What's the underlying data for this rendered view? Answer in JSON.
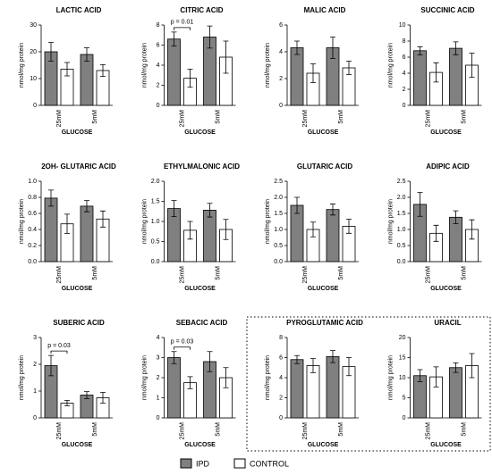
{
  "chart_data": [
    {
      "type": "bar",
      "title": "LACTIC ACID",
      "ylabel": "nmol/mg protein",
      "xlabel": "GLUCOSE",
      "categories": [
        "25mM",
        "5mM"
      ],
      "ylim": [
        0,
        30
      ],
      "yticks": [
        0,
        10,
        20,
        30
      ],
      "series": [
        {
          "name": "IPD",
          "color": "#808080",
          "values": [
            20,
            19
          ],
          "error": [
            3.5,
            2.5
          ]
        },
        {
          "name": "CONTROL",
          "color": "#ffffff",
          "values": [
            13.5,
            13
          ],
          "error": [
            2.5,
            2.2
          ]
        }
      ]
    },
    {
      "type": "bar",
      "title": "CITRIC ACID",
      "ylabel": "nmol/mg protein",
      "xlabel": "GLUCOSE",
      "categories": [
        "25mM",
        "5mM"
      ],
      "ylim": [
        0,
        8
      ],
      "yticks": [
        0,
        2,
        4,
        6,
        8
      ],
      "annotation": "p = 0.01",
      "series": [
        {
          "color": "#808080",
          "values": [
            6.6,
            6.8
          ],
          "error": [
            0.7,
            1.1
          ]
        },
        {
          "color": "#ffffff",
          "values": [
            2.7,
            4.8
          ],
          "error": [
            0.9,
            1.6
          ]
        }
      ]
    },
    {
      "type": "bar",
      "title": "MALIC ACID",
      "ylabel": "nmol/mg protein",
      "xlabel": "GLUCOSE",
      "categories": [
        "25mM",
        "5mM"
      ],
      "ylim": [
        0,
        6
      ],
      "yticks": [
        0,
        2,
        4,
        6
      ],
      "series": [
        {
          "color": "#808080",
          "values": [
            4.3,
            4.3
          ],
          "error": [
            0.5,
            0.8
          ]
        },
        {
          "color": "#ffffff",
          "values": [
            2.4,
            2.8
          ],
          "error": [
            0.7,
            0.5
          ]
        }
      ]
    },
    {
      "type": "bar",
      "title": "SUCCINIC ACID",
      "ylabel": "nmol/mg protein",
      "xlabel": "GLUCOSE",
      "categories": [
        "25mM",
        "5mM"
      ],
      "ylim": [
        0,
        10
      ],
      "yticks": [
        0,
        2,
        4,
        6,
        8,
        10
      ],
      "series": [
        {
          "color": "#808080",
          "values": [
            6.8,
            7.1
          ],
          "error": [
            0.5,
            0.8
          ]
        },
        {
          "color": "#ffffff",
          "values": [
            4.1,
            5.0
          ],
          "error": [
            1.2,
            1.5
          ]
        }
      ]
    },
    {
      "type": "bar",
      "title": "2OH- GLUTARIC ACID",
      "ylabel": "nmol/mg protein",
      "xlabel": "GLUCOSE",
      "categories": [
        "25mM",
        "5mM"
      ],
      "ylim": [
        0,
        1
      ],
      "yticks": [
        {
          "value": 0,
          "label": "0.0"
        },
        0.2,
        0.4,
        0.6,
        0.8,
        {
          "value": 1,
          "label": "1.0"
        }
      ],
      "series": [
        {
          "color": "#808080",
          "values": [
            0.79,
            0.69
          ],
          "error": [
            0.1,
            0.07
          ]
        },
        {
          "color": "#ffffff",
          "values": [
            0.47,
            0.53
          ],
          "error": [
            0.12,
            0.1
          ]
        }
      ]
    },
    {
      "type": "bar",
      "title": "ETHYLMALONIC ACID",
      "ylabel": "nmol/mg protein",
      "xlabel": "GLUCOSE",
      "categories": [
        "25mM",
        "5mM"
      ],
      "ylim": [
        0,
        2
      ],
      "yticks": [
        {
          "value": 0,
          "label": "0.0"
        },
        0.5,
        {
          "value": 1,
          "label": "1.0"
        },
        1.5,
        {
          "value": 2,
          "label": "2.0"
        }
      ],
      "series": [
        {
          "color": "#808080",
          "values": [
            1.32,
            1.28
          ],
          "error": [
            0.2,
            0.17
          ]
        },
        {
          "color": "#ffffff",
          "values": [
            0.78,
            0.8
          ],
          "error": [
            0.22,
            0.25
          ]
        }
      ]
    },
    {
      "type": "bar",
      "title": "GLUTARIC ACID",
      "ylabel": "nmol/mg protein",
      "xlabel": "GLUCOSE",
      "categories": [
        "25mM",
        "5mM"
      ],
      "ylim": [
        0,
        2.5
      ],
      "yticks": [
        {
          "value": 0,
          "label": "0.0"
        },
        0.5,
        {
          "value": 1,
          "label": "1.0"
        },
        1.5,
        {
          "value": 2,
          "label": "2.0"
        },
        2.5
      ],
      "series": [
        {
          "color": "#808080",
          "values": [
            1.75,
            1.62
          ],
          "error": [
            0.25,
            0.17
          ]
        },
        {
          "color": "#ffffff",
          "values": [
            1.0,
            1.1
          ],
          "error": [
            0.23,
            0.22
          ]
        }
      ]
    },
    {
      "type": "bar",
      "title": "ADIPIC ACID",
      "ylabel": "nmol/mg protein",
      "xlabel": "GLUCOSE",
      "categories": [
        "25mM",
        "5mM"
      ],
      "ylim": [
        0,
        2.5
      ],
      "yticks": [
        {
          "value": 0,
          "label": "0.0"
        },
        0.5,
        {
          "value": 1,
          "label": "1.0"
        },
        1.5,
        {
          "value": 2,
          "label": "2.0"
        },
        2.5
      ],
      "series": [
        {
          "color": "#808080",
          "values": [
            1.78,
            1.38
          ],
          "error": [
            0.37,
            0.2
          ]
        },
        {
          "color": "#ffffff",
          "values": [
            0.88,
            1.0
          ],
          "error": [
            0.25,
            0.3
          ]
        }
      ]
    },
    {
      "type": "bar",
      "title": "SUBERIC ACID",
      "ylabel": "nmol/mg protein",
      "xlabel": "GLUCOSE",
      "categories": [
        "25mM",
        "5mM"
      ],
      "ylim": [
        0,
        3
      ],
      "yticks": [
        0,
        1,
        2,
        3
      ],
      "annotation": "p = 0.03",
      "series": [
        {
          "color": "#808080",
          "values": [
            1.95,
            0.85
          ],
          "error": [
            0.38,
            0.13
          ]
        },
        {
          "color": "#ffffff",
          "values": [
            0.55,
            0.75
          ],
          "error": [
            0.1,
            0.2
          ]
        }
      ]
    },
    {
      "type": "bar",
      "title": "SEBACIC ACID",
      "ylabel": "nmol/mg protein",
      "xlabel": "GLUCOSE",
      "categories": [
        "25mM",
        "5mM"
      ],
      "ylim": [
        0,
        4
      ],
      "yticks": [
        0,
        1,
        2,
        3,
        4
      ],
      "annotation": "p = 0.03",
      "series": [
        {
          "color": "#808080",
          "values": [
            3.0,
            2.8
          ],
          "error": [
            0.3,
            0.5
          ]
        },
        {
          "color": "#ffffff",
          "values": [
            1.75,
            2.0
          ],
          "error": [
            0.3,
            0.5
          ]
        }
      ]
    },
    {
      "type": "bar",
      "title": "PYROGLUTAMIC ACID",
      "ylabel": "nmol/mg protein",
      "xlabel": "GLUCOSE",
      "categories": [
        "25mM",
        "5mM"
      ],
      "ylim": [
        0,
        8
      ],
      "yticks": [
        0,
        2,
        4,
        6,
        8
      ],
      "series": [
        {
          "color": "#808080",
          "values": [
            5.8,
            6.1
          ],
          "error": [
            0.4,
            0.6
          ]
        },
        {
          "color": "#ffffff",
          "values": [
            5.2,
            5.1
          ],
          "error": [
            0.7,
            0.9
          ]
        }
      ]
    },
    {
      "type": "bar",
      "title": "URACIL",
      "ylabel": "nmol/mg protein",
      "xlabel": "GLUCOSE",
      "categories": [
        "25mM",
        "5mM"
      ],
      "ylim": [
        0,
        20
      ],
      "yticks": [
        0,
        5,
        10,
        15,
        20
      ],
      "series": [
        {
          "color": "#808080",
          "values": [
            10.5,
            12.5
          ],
          "error": [
            1.5,
            1.2
          ]
        },
        {
          "color": "#ffffff",
          "values": [
            10.2,
            13
          ],
          "error": [
            2.5,
            3
          ]
        }
      ]
    }
  ]
}
